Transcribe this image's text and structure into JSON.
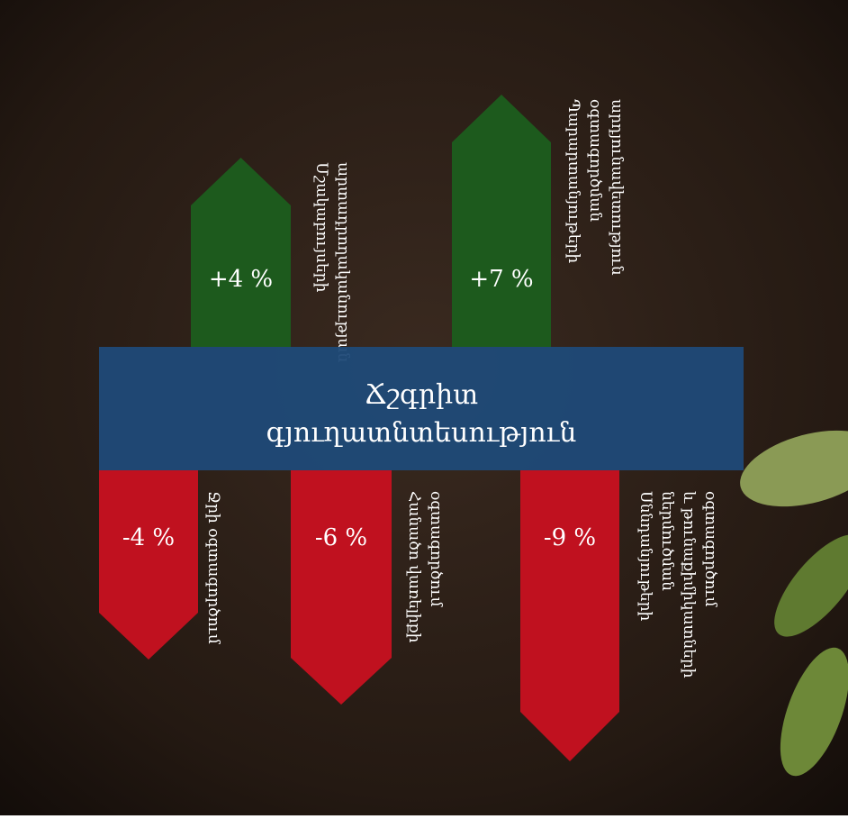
{
  "title": {
    "lines": [
      "Ճշգրիտ",
      "գյուղատնտեսություն"
    ]
  },
  "arrows": [
    {
      "label": "+4 %",
      "description": [
        "Մշակաբույսերի",
        "արտադրողականության"
      ]
    },
    {
      "label": "+7 %",
      "description": [
        "Պարարտանյութերի",
        "օգտագործման",
        "արդյունավետություն"
      ]
    },
    {
      "label": "-4 %",
      "description": [
        "Ջրի օգտագործում"
      ]
    },
    {
      "label": "-6 %",
      "description": [
        "Հանածո վառելիքի",
        "օգտագործում"
      ]
    },
    {
      "label": "-9 %",
      "description": [
        "Սննդանյութերի",
        "ներմուծման",
        "և թունաքիմիկատների",
        "օգտագործում"
      ]
    }
  ]
}
